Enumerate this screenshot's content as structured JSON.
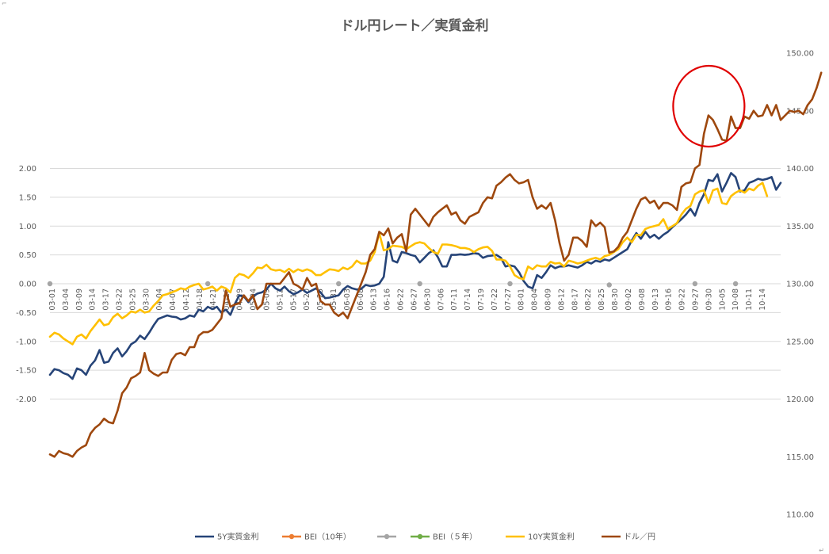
{
  "chart_data": {
    "type": "line",
    "title": "ドル円レート／実質金利",
    "y_left": {
      "ticks": [
        "2.00",
        "1.50",
        "1.00",
        "0.50",
        "0.00",
        "-0.50",
        "-1.00",
        "-1.50",
        "-2.00"
      ],
      "ylim": [
        -2.0,
        2.0
      ]
    },
    "y_right": {
      "ticks": [
        "150.00",
        "145.00",
        "140.00",
        "135.00",
        "130.00",
        "125.00",
        "120.00",
        "115.00",
        "110.00"
      ],
      "ylim": [
        110,
        150
      ]
    },
    "x_tick_labels": [
      "03-01",
      "03-04",
      "03-09",
      "03-14",
      "03-17",
      "03-22",
      "03-25",
      "03-30",
      "04-04",
      "04-07",
      "04-12",
      "04-18",
      "04-21",
      "04-26",
      "04-29",
      "05-04",
      "05-09",
      "05-12",
      "05-17",
      "05-20",
      "05-25",
      "05-31",
      "06-03",
      "06-08",
      "06-13",
      "06-16",
      "06-22",
      "06-27",
      "06-30",
      "07-06",
      "07-11",
      "07-14",
      "07-19",
      "07-22",
      "07-27",
      "08-01",
      "08-04",
      "08-09",
      "08-12",
      "08-17",
      "08-22",
      "08-25",
      "08-30",
      "09-02",
      "09-08",
      "09-13",
      "09-16",
      "09-22",
      "09-27",
      "09-30",
      "10-05",
      "10-08",
      "10-11",
      "10-14"
    ],
    "legend": [
      {
        "name": "5Y実質金利",
        "color": "#264478"
      },
      {
        "name": "BEI（10年）",
        "color": "#ED7D31"
      },
      {
        "name": "",
        "color": "#A5A5A5"
      },
      {
        "name": "BEI（５年）",
        "color": "#70AD47"
      },
      {
        "name": "10Y実質金利",
        "color": "#FFC000"
      },
      {
        "name": "ドル／円",
        "color": "#9E480E"
      }
    ],
    "series": [
      {
        "name": "5Y実質金利",
        "axis": "left",
        "color": "#264478",
        "values": [
          -1.58,
          -1.48,
          -1.5,
          -1.55,
          -1.58,
          -1.65,
          -1.47,
          -1.5,
          -1.58,
          -1.42,
          -1.33,
          -1.15,
          -1.37,
          -1.35,
          -1.2,
          -1.12,
          -1.26,
          -1.17,
          -1.05,
          -1.0,
          -0.9,
          -0.96,
          -0.85,
          -0.72,
          -0.61,
          -0.58,
          -0.55,
          -0.57,
          -0.58,
          -0.62,
          -0.6,
          -0.55,
          -0.57,
          -0.45,
          -0.48,
          -0.4,
          -0.44,
          -0.4,
          -0.5,
          -0.45,
          -0.54,
          -0.35,
          -0.2,
          -0.22,
          -0.32,
          -0.22,
          -0.17,
          -0.15,
          -0.1,
          0.0,
          -0.08,
          -0.12,
          -0.05,
          -0.13,
          -0.18,
          -0.15,
          -0.1,
          -0.16,
          -0.12,
          -0.08,
          -0.15,
          -0.25,
          -0.24,
          -0.22,
          -0.2,
          -0.1,
          -0.04,
          -0.08,
          -0.1,
          -0.09,
          -0.02,
          -0.04,
          -0.03,
          0.0,
          0.12,
          0.72,
          0.4,
          0.37,
          0.55,
          0.53,
          0.5,
          0.48,
          0.37,
          0.45,
          0.53,
          0.58,
          0.46,
          0.3,
          0.3,
          0.5,
          0.5,
          0.51,
          0.5,
          0.51,
          0.53,
          0.52,
          0.45,
          0.48,
          0.49,
          0.5,
          0.45,
          0.3,
          0.32,
          0.3,
          0.2,
          0.05,
          -0.05,
          -0.08,
          0.15,
          0.1,
          0.2,
          0.32,
          0.27,
          0.3,
          0.3,
          0.32,
          0.3,
          0.28,
          0.32,
          0.38,
          0.35,
          0.4,
          0.38,
          0.42,
          0.4,
          0.45,
          0.5,
          0.55,
          0.6,
          0.75,
          0.88,
          0.78,
          0.9,
          0.8,
          0.85,
          0.78,
          0.85,
          0.9,
          0.98,
          1.05,
          1.12,
          1.2,
          1.3,
          1.18,
          1.4,
          1.55,
          1.8,
          1.78,
          1.9,
          1.6,
          1.75,
          1.92,
          1.85,
          1.6,
          1.62,
          1.75,
          1.78,
          1.82,
          1.8,
          1.82,
          1.85,
          1.63,
          1.75
        ]
      },
      {
        "name": "10Y実質金利",
        "axis": "left",
        "color": "#FFC000",
        "values": [
          -0.92,
          -0.85,
          -0.88,
          -0.95,
          -1.0,
          -1.05,
          -0.92,
          -0.88,
          -0.95,
          -0.82,
          -0.72,
          -0.62,
          -0.72,
          -0.7,
          -0.58,
          -0.52,
          -0.6,
          -0.55,
          -0.48,
          -0.5,
          -0.45,
          -0.5,
          -0.48,
          -0.38,
          -0.3,
          -0.2,
          -0.18,
          -0.15,
          -0.12,
          -0.08,
          -0.1,
          -0.05,
          -0.02,
          0.0,
          -0.1,
          -0.08,
          -0.05,
          -0.12,
          -0.05,
          -0.08,
          -0.15,
          0.1,
          0.17,
          0.15,
          0.1,
          0.18,
          0.28,
          0.27,
          0.33,
          0.25,
          0.23,
          0.24,
          0.2,
          0.26,
          0.2,
          0.25,
          0.22,
          0.25,
          0.22,
          0.15,
          0.15,
          0.2,
          0.25,
          0.24,
          0.22,
          0.28,
          0.25,
          0.3,
          0.4,
          0.35,
          0.35,
          0.4,
          0.55,
          0.88,
          0.58,
          0.6,
          0.66,
          0.65,
          0.64,
          0.6,
          0.65,
          0.7,
          0.72,
          0.7,
          0.62,
          0.55,
          0.52,
          0.68,
          0.68,
          0.67,
          0.65,
          0.62,
          0.62,
          0.6,
          0.55,
          0.6,
          0.63,
          0.64,
          0.57,
          0.42,
          0.42,
          0.4,
          0.3,
          0.15,
          0.1,
          0.08,
          0.3,
          0.25,
          0.32,
          0.3,
          0.3,
          0.38,
          0.35,
          0.36,
          0.3,
          0.4,
          0.38,
          0.35,
          0.37,
          0.4,
          0.43,
          0.45,
          0.42,
          0.48,
          0.5,
          0.55,
          0.6,
          0.72,
          0.8,
          0.72,
          0.85,
          0.84,
          0.95,
          0.98,
          1.0,
          1.02,
          1.12,
          0.95,
          1.0,
          1.05,
          1.2,
          1.3,
          1.35,
          1.55,
          1.6,
          1.62,
          1.4,
          1.62,
          1.65,
          1.4,
          1.38,
          1.52,
          1.58,
          1.62,
          1.58,
          1.65,
          1.62,
          1.7,
          1.75,
          1.52
        ]
      },
      {
        "name": "ドル／円",
        "axis": "right",
        "color": "#9E480E",
        "values": [
          115.2,
          115.0,
          115.5,
          115.3,
          115.2,
          115.0,
          115.5,
          115.8,
          116.0,
          117.0,
          117.5,
          117.8,
          118.3,
          118.0,
          117.9,
          119.0,
          120.5,
          121.0,
          121.8,
          122.0,
          122.3,
          124.0,
          122.5,
          122.2,
          122.0,
          122.3,
          122.3,
          123.4,
          123.9,
          124.0,
          123.8,
          124.5,
          124.5,
          125.5,
          125.8,
          125.8,
          126.0,
          126.5,
          127.0,
          129.4,
          128.0,
          128.2,
          128.3,
          129.0,
          128.5,
          129.0,
          127.8,
          128.2,
          130.0,
          130.0,
          130.0,
          130.0,
          130.5,
          131.0,
          130.0,
          129.8,
          129.5,
          130.5,
          129.8,
          130.0,
          128.5,
          128.2,
          128.2,
          127.5,
          127.2,
          127.5,
          127.0,
          128.0,
          129.0,
          130.0,
          131.0,
          132.5,
          133.0,
          134.5,
          134.2,
          134.8,
          133.5,
          134.0,
          134.3,
          132.8,
          136.0,
          136.5,
          136.0,
          135.5,
          135.0,
          135.8,
          136.2,
          136.5,
          136.8,
          136.0,
          136.2,
          135.5,
          135.2,
          135.8,
          136.0,
          136.2,
          137.0,
          137.5,
          137.4,
          138.5,
          138.8,
          139.2,
          139.5,
          139.0,
          138.7,
          138.8,
          139.0,
          137.5,
          136.5,
          136.8,
          136.5,
          137.0,
          135.5,
          133.5,
          132.0,
          132.5,
          134.0,
          134.0,
          133.7,
          133.2,
          135.5,
          135.0,
          135.3,
          134.9,
          132.7,
          132.8,
          133.2,
          134.0,
          134.5,
          135.5,
          136.5,
          137.3,
          137.5,
          137.0,
          137.2,
          136.5,
          137.0,
          137.0,
          136.8,
          136.4,
          138.4,
          138.7,
          138.8,
          140.0,
          140.3,
          143.0,
          144.6,
          144.2,
          143.4,
          142.5,
          142.4,
          144.5,
          143.5,
          143.5,
          144.5,
          144.3,
          145.0,
          144.5,
          144.6,
          145.5,
          144.6,
          145.5,
          144.2,
          144.6,
          145.0,
          144.9,
          145.0,
          144.7,
          145.5,
          146.0,
          147.0,
          148.3
        ]
      }
    ],
    "hidden_series_points": [
      {
        "name": "",
        "x_index": 0,
        "y": 0.0
      },
      {
        "name": "",
        "x_index": 35,
        "y": 0.0
      },
      {
        "name": "",
        "x_index": 64,
        "y": 0.0
      },
      {
        "name": "",
        "x_index": 82,
        "y": 0.0
      },
      {
        "name": "",
        "x_index": 102,
        "y": 0.0
      },
      {
        "name": "",
        "x_index": 124,
        "y": -0.02
      },
      {
        "name": "",
        "x_index": 143,
        "y": 0.0
      },
      {
        "name": "",
        "x_index": 152,
        "y": 0.0
      }
    ],
    "annotation": {
      "shape": "circle",
      "color": "#E00000",
      "around_x_label": "09-30"
    },
    "grid": true,
    "legend_position": "bottom"
  }
}
